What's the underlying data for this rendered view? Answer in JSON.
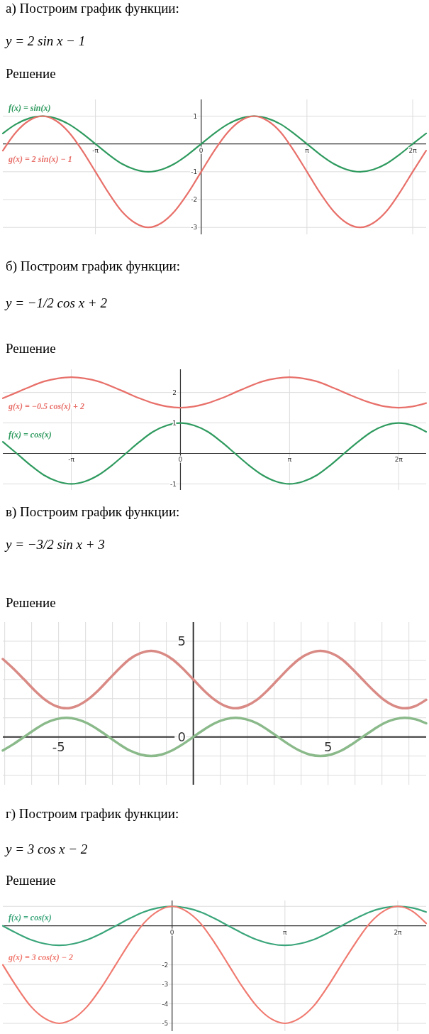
{
  "chart_data": [
    {
      "type": "line",
      "title": "а) Построим график функции:",
      "subtitle": "y = 2 sin x − 1",
      "annotations": [
        "Решение"
      ],
      "grid": true,
      "xlim": [
        -5.89,
        6.68
      ],
      "ylim": [
        -3.25,
        1.6
      ],
      "xticks": [
        {
          "value": -3.14,
          "label": "-π"
        },
        0,
        {
          "value": 3.14,
          "label": "π"
        },
        {
          "value": 6.28,
          "label": "2π"
        }
      ],
      "yticks": [
        -3,
        -2,
        -1,
        1
      ],
      "x": [
        -5.89,
        -5.5,
        -5.11,
        -4.71,
        -4.32,
        -3.93,
        -3.53,
        -3.14,
        -2.75,
        -2.36,
        -1.96,
        -1.57,
        -1.18,
        -0.79,
        -0.39,
        0,
        0.39,
        0.79,
        1.18,
        1.57,
        1.96,
        2.36,
        2.75,
        3.14,
        3.53,
        3.93,
        4.32,
        4.71,
        5.11,
        5.5,
        5.89,
        6.28,
        6.68
      ],
      "series": [
        {
          "name": "f(x) = sin(x)",
          "color": "#2e9a5e",
          "values": [
            0.38,
            0.71,
            0.92,
            1,
            0.92,
            0.71,
            0.38,
            0,
            -0.38,
            -0.71,
            -0.92,
            -1,
            -0.92,
            -0.71,
            -0.38,
            0,
            0.38,
            0.71,
            0.92,
            1,
            0.92,
            0.71,
            0.38,
            0,
            -0.38,
            -0.71,
            -0.92,
            -1,
            -0.92,
            -0.71,
            -0.38,
            0,
            0.38
          ]
        },
        {
          "name": "g(x) = 2 sin(x) − 1",
          "color": "#e8706a",
          "values": [
            -0.24,
            0.42,
            0.84,
            1,
            0.84,
            0.42,
            -0.24,
            -1,
            -1.76,
            -2.42,
            -2.84,
            -3,
            -2.84,
            -2.42,
            -1.76,
            -1,
            -0.24,
            0.42,
            0.84,
            1,
            0.84,
            0.42,
            -0.24,
            -1,
            -1.76,
            -2.42,
            -2.84,
            -3,
            -2.84,
            -2.42,
            -1.76,
            -1,
            -0.24
          ]
        }
      ]
    },
    {
      "type": "line",
      "title": "б) Построим график функции:",
      "subtitle": "y = −1/2 cos x + 2",
      "annotations": [
        "Решение"
      ],
      "grid": true,
      "xlim": [
        -5.11,
        7.07
      ],
      "ylim": [
        -1.2,
        2.76
      ],
      "xticks": [
        {
          "value": -3.14,
          "label": "-π"
        },
        0,
        {
          "value": 3.14,
          "label": "π"
        },
        {
          "value": 6.28,
          "label": "2π"
        }
      ],
      "yticks": [
        -1,
        1,
        2
      ],
      "x": [
        -5.11,
        -4.71,
        -4.32,
        -3.93,
        -3.53,
        -3.14,
        -2.75,
        -2.36,
        -1.96,
        -1.57,
        -1.18,
        -0.79,
        -0.39,
        0,
        0.39,
        0.79,
        1.18,
        1.57,
        1.96,
        2.36,
        2.75,
        3.14,
        3.53,
        3.93,
        4.32,
        4.71,
        5.11,
        5.5,
        5.89,
        6.28,
        6.68,
        7.07
      ],
      "series": [
        {
          "name": "g(x) = −0.5 cos(x) + 2",
          "color": "#e8706a",
          "values": [
            1.81,
            2,
            2.19,
            2.36,
            2.46,
            2.5,
            2.46,
            2.36,
            2.19,
            2,
            1.81,
            1.65,
            1.54,
            1.5,
            1.54,
            1.65,
            1.81,
            2,
            2.19,
            2.36,
            2.46,
            2.5,
            2.46,
            2.36,
            2.19,
            2,
            1.81,
            1.65,
            1.54,
            1.5,
            1.54,
            1.65
          ]
        },
        {
          "name": "f(x) = cos(x)",
          "color": "#2e9a5e",
          "values": [
            0.38,
            0,
            -0.38,
            -0.71,
            -0.92,
            -1,
            -0.92,
            -0.71,
            -0.38,
            0,
            0.38,
            0.71,
            0.92,
            1,
            0.92,
            0.71,
            0.38,
            0,
            -0.38,
            -0.71,
            -0.92,
            -1,
            -0.92,
            -0.71,
            -0.38,
            0,
            0.38,
            0.71,
            0.92,
            1,
            0.92,
            0.71
          ]
        }
      ]
    },
    {
      "type": "line",
      "title": "в) Построим график функции:",
      "subtitle": "y = −3/2 sin x + 3",
      "annotations": [
        "Решение"
      ],
      "grid": true,
      "xlim": [
        -7.07,
        8.64
      ],
      "ylim": [
        -2.5,
        6
      ],
      "xticks": [
        {
          "value": -7,
          "label": null
        },
        {
          "value": -6,
          "label": null
        },
        -5,
        {
          "value": -4,
          "label": null
        },
        {
          "value": -3,
          "label": null
        },
        {
          "value": -2,
          "label": null
        },
        {
          "value": -1,
          "label": null
        },
        {
          "value": 0,
          "label": null
        },
        {
          "value": 1,
          "label": null
        },
        {
          "value": 2,
          "label": null
        },
        {
          "value": 3,
          "label": null
        },
        {
          "value": 4,
          "label": null
        },
        5,
        {
          "value": 6,
          "label": null
        },
        {
          "value": 7,
          "label": null
        },
        {
          "value": 8,
          "label": null
        }
      ],
      "yticks": [
        {
          "value": -2,
          "label": null
        },
        {
          "value": -1,
          "label": null
        },
        0,
        {
          "value": 1,
          "label": null
        },
        {
          "value": 2,
          "label": null
        },
        {
          "value": 3,
          "label": null
        },
        {
          "value": 4,
          "label": null
        },
        5
      ],
      "x": [
        -7.07,
        -6.68,
        -6.28,
        -5.89,
        -5.5,
        -5.11,
        -4.71,
        -4.32,
        -3.93,
        -3.53,
        -3.14,
        -2.75,
        -2.36,
        -1.96,
        -1.57,
        -1.18,
        -0.79,
        -0.39,
        0,
        0.39,
        0.79,
        1.18,
        1.57,
        1.96,
        2.36,
        2.75,
        3.14,
        3.53,
        3.93,
        4.32,
        4.71,
        5.11,
        5.5,
        5.89,
        6.28,
        6.68,
        7.07,
        7.46,
        7.85,
        8.25,
        8.64
      ],
      "series": [
        {
          "color": "#d98a85",
          "values": [
            4.07,
            3.57,
            3,
            2.43,
            1.94,
            1.62,
            1.5,
            1.62,
            1.94,
            2.43,
            3,
            3.57,
            4.07,
            4.38,
            4.5,
            4.38,
            4.07,
            3.57,
            3,
            2.43,
            1.94,
            1.62,
            1.5,
            1.62,
            1.94,
            2.43,
            3,
            3.57,
            4.07,
            4.38,
            4.5,
            4.38,
            4.07,
            3.57,
            3,
            2.43,
            1.94,
            1.62,
            1.5,
            1.62,
            1.94
          ]
        },
        {
          "color": "#8ab98a",
          "values": [
            -0.71,
            -0.38,
            0,
            0.38,
            0.71,
            0.92,
            1,
            0.92,
            0.71,
            0.38,
            0,
            -0.38,
            -0.71,
            -0.92,
            -1,
            -0.92,
            -0.71,
            -0.38,
            0,
            0.38,
            0.71,
            0.92,
            1,
            0.92,
            0.71,
            0.38,
            0,
            -0.38,
            -0.71,
            -0.92,
            -1,
            -0.92,
            -0.71,
            -0.38,
            0,
            0.38,
            0.71,
            0.92,
            1,
            0.92,
            0.71
          ]
        }
      ]
    },
    {
      "type": "line",
      "title": "г) Построим график функции:",
      "subtitle": "y = 3 cos x − 2",
      "annotations": [
        "Решение"
      ],
      "grid": true,
      "xlim": [
        -4.71,
        7.07
      ],
      "ylim": [
        -5.4,
        1.3
      ],
      "xticks": [
        0,
        {
          "value": 3.14,
          "label": "π"
        },
        {
          "value": 6.28,
          "label": "2π"
        }
      ],
      "yticks": [
        -5,
        -4,
        -3,
        -2,
        {
          "value": 1,
          "label": null
        }
      ],
      "x": [
        -4.71,
        -4.32,
        -3.93,
        -3.53,
        -3.14,
        -2.75,
        -2.36,
        -1.96,
        -1.57,
        -1.18,
        -0.79,
        -0.39,
        0,
        0.39,
        0.79,
        1.18,
        1.57,
        1.96,
        2.36,
        2.75,
        3.14,
        3.53,
        3.93,
        4.32,
        4.71,
        5.11,
        5.5,
        5.89,
        6.28,
        6.68,
        7.07
      ],
      "series": [
        {
          "name": "f(x) = cos(x)",
          "color": "#3aa57a",
          "values": [
            0,
            -0.38,
            -0.71,
            -0.92,
            -1,
            -0.92,
            -0.71,
            -0.38,
            0,
            0.38,
            0.71,
            0.92,
            1,
            0.92,
            0.71,
            0.38,
            0,
            -0.38,
            -0.71,
            -0.92,
            -1,
            -0.92,
            -0.71,
            -0.38,
            0,
            0.38,
            0.71,
            0.92,
            1,
            0.92,
            0.71
          ]
        },
        {
          "name": "g(x) = 3 cos(x) − 2",
          "color": "#f07a70",
          "values": [
            -2,
            -3.14,
            -4.13,
            -4.76,
            -5,
            -4.76,
            -4.13,
            -3.14,
            -2,
            -0.86,
            0.13,
            0.76,
            1,
            0.76,
            0.13,
            -0.86,
            -2,
            -3.14,
            -4.13,
            -4.76,
            -5,
            -4.76,
            -4.13,
            -3.14,
            -2,
            -0.86,
            0.13,
            0.76,
            1,
            0.76,
            0.13
          ]
        }
      ]
    }
  ]
}
